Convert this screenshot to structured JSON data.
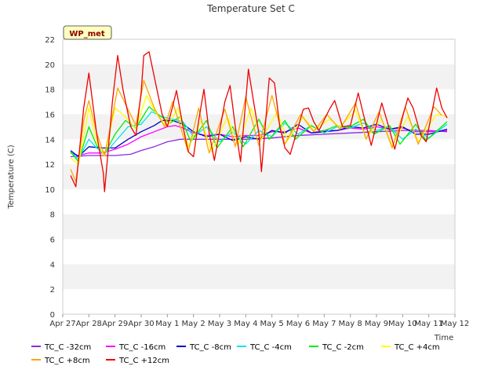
{
  "chart_data": {
    "type": "line",
    "title": "Temperature Set C",
    "xlabel": "Time",
    "ylabel": "Temperature (C)",
    "ylim": [
      0,
      22
    ],
    "xlim": [
      "2025-04-27",
      "2025-05-12"
    ],
    "yticks": [
      0,
      2,
      4,
      6,
      8,
      10,
      12,
      14,
      16,
      18,
      20,
      22
    ],
    "xticks": [
      "Apr 27",
      "Apr 28",
      "Apr 29",
      "Apr 30",
      "May 1",
      "May 2",
      "May 3",
      "May 4",
      "May 5",
      "May 6",
      "May 7",
      "May 8",
      "May 9",
      "May 10",
      "May 11",
      "May 12"
    ],
    "grid": "alternating horizontal bands",
    "legend_position": "bottom",
    "annotation": "WP_met",
    "series": [
      {
        "name": "TC_C -32cm",
        "color": "#8a2be2",
        "points": [
          [
            0.3,
            12.6
          ],
          [
            1,
            12.7
          ],
          [
            2,
            12.7
          ],
          [
            2.6,
            12.8
          ],
          [
            3,
            13.1
          ],
          [
            3.5,
            13.4
          ],
          [
            4,
            13.8
          ],
          [
            4.5,
            14.0
          ],
          [
            5,
            14.0
          ],
          [
            6,
            14.0
          ],
          [
            7,
            14.0
          ],
          [
            8,
            14.1
          ],
          [
            9,
            14.3
          ],
          [
            10,
            14.4
          ],
          [
            11,
            14.5
          ],
          [
            12,
            14.6
          ],
          [
            13,
            14.7
          ],
          [
            14,
            14.7
          ],
          [
            14.7,
            14.6
          ]
        ]
      },
      {
        "name": "TC_C -16cm",
        "color": "#ff00ff",
        "points": [
          [
            0.3,
            12.9
          ],
          [
            0.6,
            12.7
          ],
          [
            1,
            12.9
          ],
          [
            1.5,
            12.9
          ],
          [
            2,
            13.2
          ],
          [
            2.5,
            13.6
          ],
          [
            3,
            14.2
          ],
          [
            3.5,
            14.6
          ],
          [
            4,
            15.0
          ],
          [
            4.3,
            15.1
          ],
          [
            4.6,
            14.9
          ],
          [
            5,
            14.5
          ],
          [
            5.5,
            14.3
          ],
          [
            6,
            14.4
          ],
          [
            6.5,
            14.2
          ],
          [
            7,
            14.3
          ],
          [
            7.5,
            14.3
          ],
          [
            8,
            14.6
          ],
          [
            8.5,
            14.6
          ],
          [
            9,
            14.9
          ],
          [
            9.5,
            14.5
          ],
          [
            10,
            14.7
          ],
          [
            10.5,
            14.7
          ],
          [
            11,
            14.9
          ],
          [
            11.5,
            14.8
          ],
          [
            12,
            15.0
          ],
          [
            12.5,
            14.8
          ],
          [
            13,
            14.9
          ],
          [
            13.5,
            14.6
          ],
          [
            14,
            14.6
          ],
          [
            14.7,
            14.7
          ]
        ]
      },
      {
        "name": "TC_C -8cm",
        "color": "#0000cd",
        "points": [
          [
            0.3,
            13.1
          ],
          [
            0.6,
            12.6
          ],
          [
            1,
            13.4
          ],
          [
            1.5,
            13.3
          ],
          [
            2,
            13.3
          ],
          [
            2.5,
            14.0
          ],
          [
            3,
            14.6
          ],
          [
            3.5,
            15.1
          ],
          [
            3.8,
            15.5
          ],
          [
            4.2,
            15.5
          ],
          [
            4.6,
            15.2
          ],
          [
            5,
            14.6
          ],
          [
            5.5,
            14.2
          ],
          [
            6,
            14.4
          ],
          [
            6.5,
            13.9
          ],
          [
            7,
            14.2
          ],
          [
            7.5,
            14.0
          ],
          [
            8,
            14.7
          ],
          [
            8.5,
            14.5
          ],
          [
            9,
            15.2
          ],
          [
            9.5,
            14.5
          ],
          [
            10,
            14.6
          ],
          [
            10.5,
            14.7
          ],
          [
            11,
            15.0
          ],
          [
            11.5,
            14.9
          ],
          [
            12,
            15.2
          ],
          [
            12.5,
            14.8
          ],
          [
            13,
            15.0
          ],
          [
            13.5,
            14.4
          ],
          [
            14,
            14.4
          ],
          [
            14.7,
            14.8
          ]
        ]
      },
      {
        "name": "TC_C -4cm",
        "color": "#00e5ee",
        "points": [
          [
            0.3,
            13.0
          ],
          [
            0.6,
            12.4
          ],
          [
            1,
            14.0
          ],
          [
            1.3,
            13.3
          ],
          [
            1.6,
            12.8
          ],
          [
            2,
            13.8
          ],
          [
            2.5,
            15.0
          ],
          [
            3,
            15.2
          ],
          [
            3.4,
            16.2
          ],
          [
            3.8,
            15.8
          ],
          [
            4.2,
            15.6
          ],
          [
            4.6,
            15.4
          ],
          [
            5,
            14.2
          ],
          [
            5.5,
            15.0
          ],
          [
            6,
            13.8
          ],
          [
            6.5,
            14.6
          ],
          [
            7,
            13.6
          ],
          [
            7.5,
            14.7
          ],
          [
            8,
            14.2
          ],
          [
            8.5,
            15.3
          ],
          [
            9,
            14.4
          ],
          [
            9.5,
            15.1
          ],
          [
            10,
            14.5
          ],
          [
            10.5,
            15.0
          ],
          [
            11,
            14.9
          ],
          [
            11.5,
            15.3
          ],
          [
            12,
            14.7
          ],
          [
            12.5,
            15.0
          ],
          [
            13,
            14.0
          ],
          [
            13.5,
            14.8
          ],
          [
            14,
            14.1
          ],
          [
            14.7,
            15.2
          ]
        ]
      },
      {
        "name": "TC_C -2cm",
        "color": "#00ee00",
        "points": [
          [
            0.3,
            13.0
          ],
          [
            0.6,
            12.2
          ],
          [
            1,
            15.0
          ],
          [
            1.3,
            13.5
          ],
          [
            1.6,
            12.8
          ],
          [
            2,
            14.4
          ],
          [
            2.4,
            15.5
          ],
          [
            2.8,
            14.9
          ],
          [
            3.3,
            16.6
          ],
          [
            3.7,
            15.9
          ],
          [
            4.1,
            15.3
          ],
          [
            4.5,
            15.8
          ],
          [
            4.9,
            13.8
          ],
          [
            5.5,
            15.5
          ],
          [
            5.9,
            13.3
          ],
          [
            6.5,
            15.0
          ],
          [
            6.9,
            13.4
          ],
          [
            7.5,
            15.6
          ],
          [
            7.9,
            14.0
          ],
          [
            8.5,
            15.5
          ],
          [
            8.9,
            14.0
          ],
          [
            9.5,
            15.1
          ],
          [
            9.9,
            14.6
          ],
          [
            10.5,
            15.1
          ],
          [
            10.9,
            14.9
          ],
          [
            11.5,
            15.6
          ],
          [
            11.9,
            14.4
          ],
          [
            12.5,
            15.1
          ],
          [
            12.9,
            13.6
          ],
          [
            13.5,
            15.2
          ],
          [
            13.9,
            13.9
          ],
          [
            14.7,
            15.4
          ]
        ]
      },
      {
        "name": "TC_C +4cm",
        "color": "#ffff00",
        "points": [
          [
            0.3,
            12.5
          ],
          [
            0.6,
            12.0
          ],
          [
            1,
            16.5
          ],
          [
            1.3,
            13.8
          ],
          [
            1.6,
            12.6
          ],
          [
            2,
            16.5
          ],
          [
            2.4,
            15.8
          ],
          [
            2.8,
            14.8
          ],
          [
            3.2,
            17.5
          ],
          [
            3.6,
            16.0
          ],
          [
            4,
            15.0
          ],
          [
            4.4,
            16.5
          ],
          [
            4.8,
            13.4
          ],
          [
            5.3,
            15.5
          ],
          [
            5.7,
            13.0
          ],
          [
            6.3,
            15.8
          ],
          [
            6.7,
            13.5
          ],
          [
            7.2,
            16.5
          ],
          [
            7.6,
            14.0
          ],
          [
            8.2,
            16.2
          ],
          [
            8.6,
            13.9
          ],
          [
            9.2,
            15.8
          ],
          [
            9.6,
            14.7
          ],
          [
            10.2,
            15.6
          ],
          [
            10.6,
            15.0
          ],
          [
            11.2,
            16.3
          ],
          [
            11.6,
            14.1
          ],
          [
            12.2,
            15.6
          ],
          [
            12.6,
            13.5
          ],
          [
            13.2,
            15.8
          ],
          [
            13.6,
            13.8
          ],
          [
            14.3,
            16.0
          ],
          [
            14.7,
            15.8
          ]
        ]
      },
      {
        "name": "TC_C +8cm",
        "color": "#ffa500",
        "points": [
          [
            0.3,
            11.6
          ],
          [
            0.5,
            10.6
          ],
          [
            0.8,
            15.5
          ],
          [
            1,
            17.1
          ],
          [
            1.3,
            14.5
          ],
          [
            1.6,
            12.7
          ],
          [
            1.9,
            15.8
          ],
          [
            2.1,
            18.1
          ],
          [
            2.4,
            16.8
          ],
          [
            2.8,
            15.1
          ],
          [
            3.1,
            18.7
          ],
          [
            3.5,
            16.5
          ],
          [
            3.9,
            15.0
          ],
          [
            4.2,
            17.0
          ],
          [
            4.5,
            15.0
          ],
          [
            4.8,
            13.0
          ],
          [
            5.2,
            16.5
          ],
          [
            5.6,
            12.9
          ],
          [
            6.2,
            16.4
          ],
          [
            6.6,
            13.4
          ],
          [
            7,
            17.4
          ],
          [
            7.5,
            13.5
          ],
          [
            8,
            17.5
          ],
          [
            8.5,
            13.6
          ],
          [
            9.1,
            16.0
          ],
          [
            9.6,
            14.6
          ],
          [
            10.1,
            16.0
          ],
          [
            10.6,
            14.8
          ],
          [
            11.2,
            16.9
          ],
          [
            11.6,
            14.0
          ],
          [
            12.1,
            16.2
          ],
          [
            12.6,
            13.3
          ],
          [
            13.1,
            16.6
          ],
          [
            13.6,
            13.6
          ],
          [
            14.2,
            16.6
          ],
          [
            14.5,
            15.9
          ]
        ]
      },
      {
        "name": "TC_C +12cm",
        "color": "#ee0000",
        "points": [
          [
            0.3,
            11.1
          ],
          [
            0.5,
            10.2
          ],
          [
            0.8,
            16.5
          ],
          [
            1,
            19.3
          ],
          [
            1.3,
            14.4
          ],
          [
            1.55,
            11.3
          ],
          [
            1.6,
            9.8
          ],
          [
            1.9,
            17.0
          ],
          [
            2.1,
            20.7
          ],
          [
            2.3,
            18.0
          ],
          [
            2.6,
            15.0
          ],
          [
            2.8,
            14.3
          ],
          [
            3,
            17.8
          ],
          [
            3.1,
            20.7
          ],
          [
            3.3,
            21.0
          ],
          [
            3.6,
            18.0
          ],
          [
            3.8,
            16.0
          ],
          [
            4,
            15.0
          ],
          [
            4.2,
            16.6
          ],
          [
            4.35,
            17.9
          ],
          [
            4.6,
            15.0
          ],
          [
            4.8,
            13.0
          ],
          [
            5,
            12.6
          ],
          [
            5.2,
            15.5
          ],
          [
            5.4,
            18.0
          ],
          [
            5.6,
            14.5
          ],
          [
            5.8,
            12.3
          ],
          [
            6.2,
            17.0
          ],
          [
            6.4,
            18.3
          ],
          [
            6.6,
            15.0
          ],
          [
            6.8,
            12.2
          ],
          [
            7.1,
            19.6
          ],
          [
            7.3,
            17.0
          ],
          [
            7.5,
            14.5
          ],
          [
            7.6,
            11.4
          ],
          [
            7.9,
            18.9
          ],
          [
            8.1,
            18.5
          ],
          [
            8.3,
            15.0
          ],
          [
            8.5,
            13.3
          ],
          [
            8.7,
            12.8
          ],
          [
            9.2,
            16.4
          ],
          [
            9.4,
            16.5
          ],
          [
            9.6,
            15.4
          ],
          [
            9.8,
            14.7
          ],
          [
            10.2,
            16.4
          ],
          [
            10.4,
            17.1
          ],
          [
            10.7,
            15.0
          ],
          [
            11,
            15.1
          ],
          [
            11.3,
            17.7
          ],
          [
            11.5,
            16.0
          ],
          [
            11.8,
            13.5
          ],
          [
            12.2,
            16.9
          ],
          [
            12.4,
            15.5
          ],
          [
            12.7,
            13.2
          ],
          [
            13,
            15.8
          ],
          [
            13.2,
            17.3
          ],
          [
            13.4,
            16.5
          ],
          [
            13.7,
            14.3
          ],
          [
            13.9,
            13.8
          ],
          [
            14.3,
            18.1
          ],
          [
            14.5,
            16.5
          ],
          [
            14.7,
            15.7
          ]
        ]
      }
    ]
  }
}
